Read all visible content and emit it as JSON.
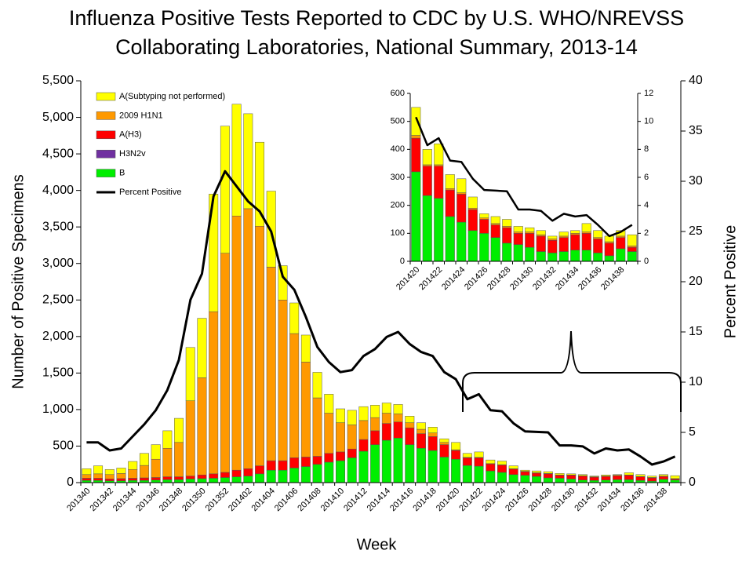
{
  "chart_data": [
    {
      "type": "bar",
      "stacked": true,
      "title": [
        "Influenza Positive Tests Reported to CDC by U.S. WHO/NREVSS",
        "Collaborating Laboratories, National Summary, 2013-14"
      ],
      "ylabel": "Number of Positive Specimens",
      "y2label": "Percent Positive",
      "xlabel": "Week",
      "legend": "upper left",
      "categories": [
        "201340",
        null,
        "201342",
        null,
        "201344",
        null,
        "201346",
        null,
        "201348",
        null,
        "201350",
        null,
        "201352",
        null,
        "201402",
        null,
        "201404",
        null,
        "201406",
        null,
        "201408",
        null,
        "201410",
        null,
        "201412",
        null,
        "201414",
        null,
        "201416",
        null,
        "201418",
        null,
        "201420",
        null,
        "201422",
        null,
        "201424",
        null,
        "201426",
        null,
        "201428",
        null,
        "201430",
        null,
        "201432",
        null,
        "201434",
        null,
        "201436",
        null,
        "201438",
        null
      ],
      "ylim": [
        0,
        5500
      ],
      "yticks": [
        0,
        500,
        {
          "value": 1000,
          "label": "1,000"
        },
        {
          "value": 1500,
          "label": "1,500"
        },
        {
          "value": 2000,
          "label": "2,000"
        },
        {
          "value": 2500,
          "label": "2,500"
        },
        {
          "value": 3000,
          "label": "3,000"
        },
        {
          "value": 3500,
          "label": "3,500"
        },
        {
          "value": 4000,
          "label": "4,000"
        },
        {
          "value": 4500,
          "label": "4,500"
        },
        {
          "value": 5000,
          "label": "5,000"
        },
        {
          "value": 5500,
          "label": "5,500"
        }
      ],
      "y2lim": [
        0,
        40
      ],
      "y2ticks": [
        0,
        5,
        10,
        15,
        20,
        25,
        30,
        35,
        40
      ],
      "series": [
        {
          "name": "B",
          "color": "#00ee00",
          "values": [
            30,
            30,
            25,
            25,
            30,
            30,
            35,
            40,
            40,
            50,
            55,
            60,
            70,
            80,
            90,
            120,
            170,
            170,
            200,
            220,
            250,
            280,
            300,
            340,
            430,
            520,
            580,
            610,
            520,
            470,
            440,
            350,
            320,
            235,
            225,
            160,
            140,
            110,
            100,
            85,
            65,
            60,
            50,
            35,
            30,
            35,
            40,
            40,
            30,
            20,
            45,
            35
          ]
        },
        {
          "name": "H3N2v",
          "color": "#7030a0",
          "values": [
            0,
            0,
            0,
            0,
            0,
            0,
            0,
            0,
            0,
            0,
            0,
            0,
            0,
            0,
            0,
            0,
            0,
            0,
            0,
            0,
            0,
            0,
            0,
            0,
            0,
            0,
            0,
            0,
            0,
            0,
            0,
            0,
            0,
            0,
            0,
            0,
            0,
            0,
            0,
            0,
            0,
            0,
            0,
            0,
            0,
            0,
            0,
            0,
            0,
            0,
            0,
            0
          ]
        },
        {
          "name": "A(H3)",
          "color": "#ff0000",
          "values": [
            30,
            30,
            25,
            30,
            30,
            35,
            35,
            40,
            40,
            40,
            50,
            60,
            70,
            90,
            100,
            110,
            130,
            130,
            140,
            130,
            110,
            120,
            120,
            120,
            160,
            190,
            230,
            220,
            230,
            200,
            190,
            170,
            120,
            105,
            115,
            95,
            100,
            75,
            50,
            45,
            55,
            40,
            50,
            55,
            45,
            50,
            55,
            60,
            50,
            45,
            40,
            15
          ]
        },
        {
          "name": "2009 H1N1",
          "color": "#ff9900",
          "values": [
            50,
            60,
            60,
            70,
            120,
            170,
            250,
            390,
            470,
            1030,
            1330,
            2220,
            3000,
            3480,
            3560,
            3280,
            2650,
            2200,
            1700,
            1300,
            800,
            550,
            400,
            330,
            260,
            180,
            140,
            110,
            70,
            60,
            50,
            30,
            10,
            5,
            5,
            5,
            5,
            5,
            5,
            5,
            5,
            5,
            5,
            5,
            5,
            5,
            5,
            5,
            5,
            5,
            5,
            5
          ]
        },
        {
          "name": "A(Subtyping not performed)",
          "color": "#ffff00",
          "values": [
            80,
            110,
            70,
            75,
            110,
            165,
            200,
            240,
            330,
            730,
            815,
            1610,
            1740,
            1530,
            1300,
            1150,
            1040,
            470,
            420,
            370,
            350,
            260,
            190,
            200,
            190,
            170,
            140,
            130,
            90,
            90,
            80,
            50,
            100,
            55,
            75,
            50,
            50,
            40,
            15,
            25,
            25,
            20,
            15,
            15,
            10,
            15,
            10,
            30,
            25,
            20,
            20,
            40
          ]
        },
        {
          "name": "Percent Positive",
          "type": "line",
          "axis": "y2",
          "color": "#000000",
          "values": [
            4,
            4,
            3.2,
            3.4,
            4.6,
            5.8,
            7.2,
            9.2,
            12.2,
            18.2,
            20.8,
            28.5,
            31,
            29.5,
            28,
            27,
            25,
            20.5,
            19.2,
            16.5,
            13.5,
            12,
            11,
            11.2,
            12.6,
            13.3,
            14.5,
            15,
            13.8,
            13,
            12.6,
            11,
            10.3,
            8.3,
            8.8,
            7.2,
            7.1,
            5.9,
            5.1,
            5.05,
            5,
            3.7,
            3.7,
            3.6,
            2.9,
            3.4,
            3.2,
            3.3,
            2.6,
            1.8,
            2.1,
            2.6
          ]
        }
      ]
    },
    {
      "type": "bar",
      "stacked": true,
      "categories": [
        "201420",
        null,
        "201422",
        null,
        "201424",
        null,
        "201426",
        null,
        "201428",
        null,
        "201430",
        null,
        "201432",
        null,
        "201434",
        null,
        "201436",
        null,
        "201438",
        null
      ],
      "ylim": [
        0,
        600
      ],
      "yticks": [
        0,
        100,
        200,
        300,
        400,
        500,
        600
      ],
      "y2lim": [
        0,
        12
      ],
      "y2ticks": [
        0,
        2,
        4,
        6,
        8,
        10,
        12
      ],
      "series": [
        {
          "color": "#00ee00",
          "values": [
            320,
            235,
            225,
            160,
            140,
            110,
            100,
            85,
            65,
            60,
            50,
            35,
            30,
            35,
            40,
            40,
            30,
            20,
            45,
            35
          ]
        },
        {
          "color": "#7030a0",
          "values": [
            0,
            0,
            0,
            0,
            0,
            0,
            0,
            0,
            0,
            0,
            0,
            0,
            0,
            0,
            0,
            0,
            0,
            0,
            0,
            0
          ]
        },
        {
          "color": "#ff0000",
          "values": [
            120,
            105,
            115,
            95,
            100,
            75,
            50,
            45,
            55,
            40,
            50,
            55,
            45,
            50,
            55,
            60,
            50,
            45,
            40,
            15
          ]
        },
        {
          "color": "#ff9900",
          "values": [
            10,
            5,
            5,
            5,
            5,
            5,
            5,
            5,
            5,
            5,
            5,
            5,
            5,
            5,
            5,
            5,
            5,
            5,
            5,
            5
          ]
        },
        {
          "color": "#ffff00",
          "values": [
            100,
            55,
            75,
            50,
            50,
            40,
            15,
            25,
            25,
            20,
            15,
            15,
            10,
            15,
            10,
            30,
            25,
            20,
            20,
            40
          ]
        },
        {
          "type": "line",
          "axis": "y2",
          "color": "#000000",
          "values": [
            10.3,
            8.3,
            8.8,
            7.2,
            7.1,
            5.9,
            5.1,
            5.05,
            5,
            3.7,
            3.7,
            3.6,
            2.9,
            3.4,
            3.2,
            3.3,
            2.6,
            1.8,
            2.1,
            2.6
          ]
        }
      ]
    }
  ]
}
